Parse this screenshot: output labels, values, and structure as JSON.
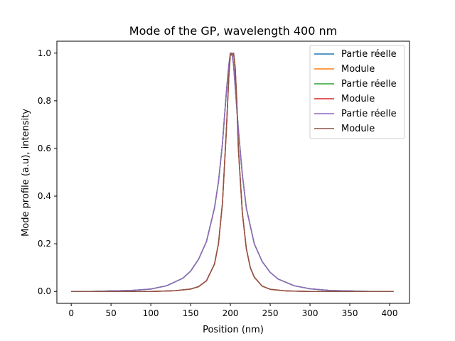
{
  "chart_data": {
    "type": "line",
    "title": "Mode of the GP, wavelength 400 nm",
    "xlabel": "Position (nm)",
    "ylabel": "Mode profile (a.u), intensity",
    "xlim": [
      -18,
      425
    ],
    "ylim": [
      -0.05,
      1.05
    ],
    "xticks": [
      0,
      50,
      100,
      150,
      200,
      250,
      300,
      350,
      400
    ],
    "yticks": [
      0.0,
      0.2,
      0.4,
      0.6,
      0.8,
      1.0
    ],
    "ytick_labels": [
      "0.0",
      "0.2",
      "0.4",
      "0.6",
      "0.8",
      "1.0"
    ],
    "grid": false,
    "legend_position": "top-right",
    "series": [
      {
        "name": "Partie réelle",
        "color": "#1f77b4",
        "x": [
          0,
          25,
          50,
          75,
          100,
          120,
          140,
          150,
          160,
          170,
          180,
          185,
          190,
          195,
          198,
          200,
          202,
          204,
          206,
          210,
          215,
          220,
          230,
          240,
          250,
          260,
          280,
          300,
          325,
          350,
          375,
          405
        ],
        "y": [
          0.0,
          0.0,
          0.002,
          0.004,
          0.01,
          0.024,
          0.055,
          0.085,
          0.135,
          0.21,
          0.35,
          0.46,
          0.62,
          0.84,
          0.95,
          1.0,
          1.0,
          0.95,
          0.86,
          0.68,
          0.49,
          0.35,
          0.2,
          0.125,
          0.08,
          0.052,
          0.024,
          0.011,
          0.004,
          0.002,
          0.0,
          0.0
        ]
      },
      {
        "name": "Module",
        "color": "#ff7f0e",
        "x": [
          0,
          50,
          100,
          130,
          150,
          160,
          170,
          180,
          185,
          190,
          195,
          198,
          200,
          202,
          204,
          206,
          208,
          210,
          215,
          220,
          225,
          230,
          240,
          250,
          270,
          300,
          350,
          405
        ],
        "y": [
          0.0,
          0.0,
          0.0,
          0.003,
          0.01,
          0.02,
          0.045,
          0.115,
          0.2,
          0.37,
          0.68,
          0.9,
          1.0,
          0.99,
          1.0,
          0.94,
          0.8,
          0.6,
          0.33,
          0.18,
          0.1,
          0.06,
          0.022,
          0.009,
          0.002,
          0.0,
          0.0,
          0.0
        ]
      },
      {
        "name": "Partie réelle",
        "color": "#2ca02c",
        "x": [
          0,
          25,
          50,
          75,
          100,
          120,
          140,
          150,
          160,
          170,
          180,
          185,
          190,
          195,
          198,
          200,
          202,
          204,
          206,
          210,
          215,
          220,
          230,
          240,
          250,
          260,
          280,
          300,
          325,
          350,
          375,
          405
        ],
        "y": [
          0.0,
          0.0,
          0.002,
          0.004,
          0.01,
          0.024,
          0.055,
          0.085,
          0.135,
          0.21,
          0.35,
          0.46,
          0.62,
          0.84,
          0.95,
          1.0,
          1.0,
          0.95,
          0.86,
          0.68,
          0.49,
          0.35,
          0.2,
          0.125,
          0.08,
          0.052,
          0.024,
          0.011,
          0.004,
          0.002,
          0.0,
          0.0
        ]
      },
      {
        "name": "Module",
        "color": "#d62728",
        "x": [
          0,
          50,
          100,
          130,
          150,
          160,
          170,
          180,
          185,
          190,
          195,
          198,
          200,
          202,
          204,
          206,
          208,
          210,
          215,
          220,
          225,
          230,
          240,
          250,
          270,
          300,
          350,
          405
        ],
        "y": [
          0.0,
          0.0,
          0.0,
          0.003,
          0.01,
          0.02,
          0.045,
          0.115,
          0.2,
          0.37,
          0.68,
          0.9,
          1.0,
          0.99,
          1.0,
          0.94,
          0.8,
          0.6,
          0.33,
          0.18,
          0.1,
          0.06,
          0.022,
          0.009,
          0.002,
          0.0,
          0.0,
          0.0
        ]
      },
      {
        "name": "Partie réelle",
        "color": "#9467bd",
        "x": [
          0,
          25,
          50,
          75,
          100,
          120,
          140,
          150,
          160,
          170,
          180,
          185,
          190,
          195,
          198,
          200,
          202,
          204,
          206,
          210,
          215,
          220,
          230,
          240,
          250,
          260,
          280,
          300,
          325,
          350,
          375,
          405
        ],
        "y": [
          0.0,
          0.0,
          0.002,
          0.004,
          0.01,
          0.024,
          0.055,
          0.085,
          0.135,
          0.21,
          0.35,
          0.46,
          0.62,
          0.84,
          0.95,
          1.0,
          1.0,
          0.95,
          0.86,
          0.68,
          0.49,
          0.35,
          0.2,
          0.125,
          0.08,
          0.052,
          0.024,
          0.011,
          0.004,
          0.002,
          0.0,
          0.0
        ]
      },
      {
        "name": "Module",
        "color": "#8c564b",
        "x": [
          0,
          50,
          100,
          130,
          150,
          160,
          170,
          180,
          185,
          190,
          195,
          198,
          200,
          202,
          204,
          206,
          208,
          210,
          215,
          220,
          225,
          230,
          240,
          250,
          270,
          300,
          350,
          405
        ],
        "y": [
          0.0,
          0.0,
          0.0,
          0.003,
          0.01,
          0.02,
          0.045,
          0.115,
          0.2,
          0.37,
          0.68,
          0.9,
          1.0,
          0.99,
          1.0,
          0.94,
          0.8,
          0.6,
          0.33,
          0.18,
          0.1,
          0.06,
          0.022,
          0.009,
          0.002,
          0.0,
          0.0,
          0.0
        ]
      }
    ]
  }
}
